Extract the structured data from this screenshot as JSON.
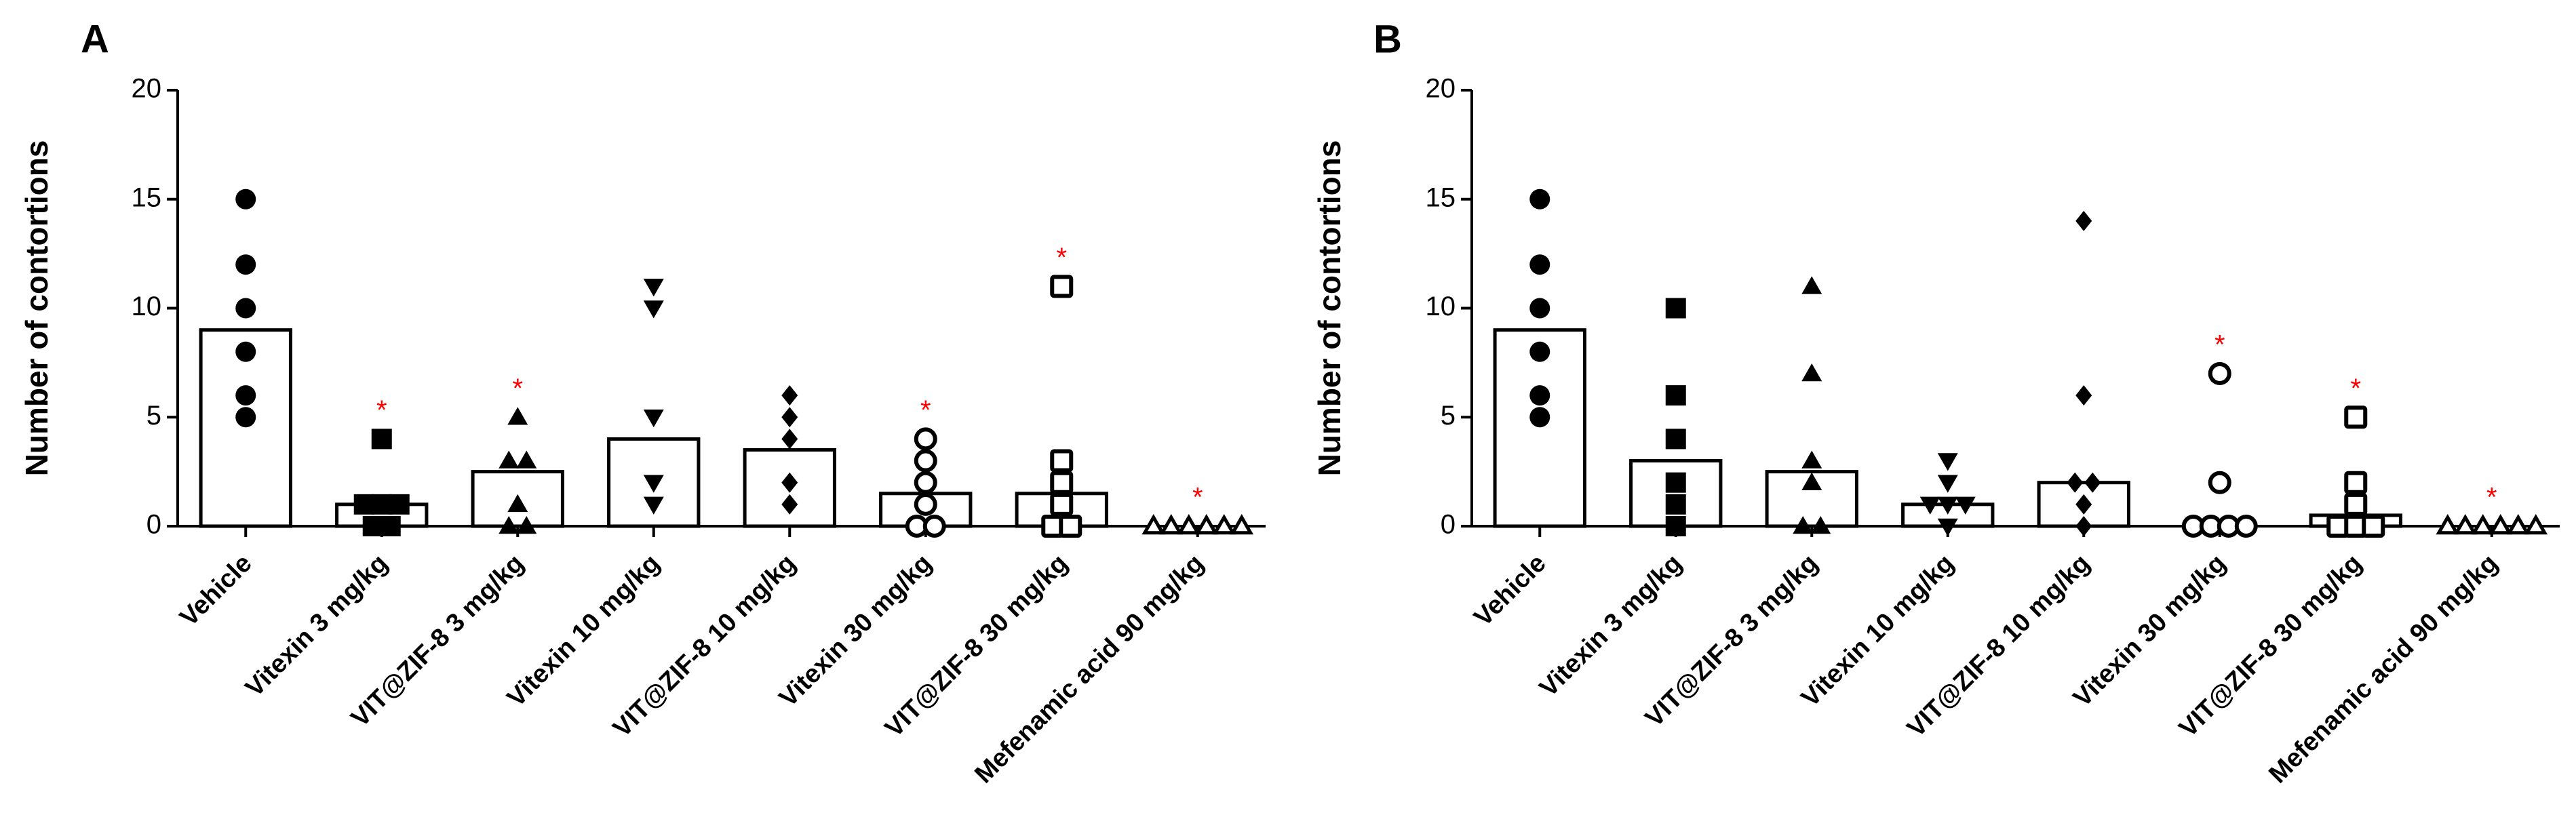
{
  "chart_data": [
    {
      "type": "bar",
      "panel_label": "A",
      "title": "",
      "xlabel": "",
      "ylabel": "Number of contortions",
      "ylim": [
        0,
        20
      ],
      "yticks": [
        0,
        5,
        10,
        15,
        20
      ],
      "significance_color": "#ff0000",
      "categories": [
        "Vehicle",
        "Vitexin 3 mg/kg",
        "VIT@ZIF-8 3 mg/kg",
        "Vitexin 10 mg/kg",
        "VIT@ZIF-8 10 mg/kg",
        "Vitexin 30 mg/kg",
        "VIT@ZIF-8 30 mg/kg",
        "Mefenamic acid 90 mg/kg"
      ],
      "markers": [
        "circle",
        "square",
        "triangle",
        "triangle-down",
        "diamond",
        "circle-open",
        "square-open",
        "triangle-open"
      ],
      "values": [
        9,
        1,
        2.5,
        4,
        3.5,
        1.5,
        1.5,
        0
      ],
      "significance": [
        "",
        "*",
        "*",
        "",
        "",
        "*",
        "*",
        "*"
      ],
      "points": [
        [
          15,
          12,
          10,
          8,
          6,
          5
        ],
        [
          4,
          1,
          1,
          1,
          0,
          0
        ],
        [
          5,
          3,
          3,
          1,
          0,
          0
        ],
        [
          11,
          10,
          5,
          2,
          1
        ],
        [
          6,
          5,
          4,
          2,
          1
        ],
        [
          4,
          3,
          2,
          1,
          0,
          0
        ],
        [
          11,
          3,
          2,
          1,
          0,
          0
        ],
        [
          0,
          0,
          0,
          0,
          0,
          0
        ]
      ]
    },
    {
      "type": "bar",
      "panel_label": "B",
      "title": "",
      "xlabel": "",
      "ylabel": "Number of contortions",
      "ylim": [
        0,
        20
      ],
      "yticks": [
        0,
        5,
        10,
        15,
        20
      ],
      "significance_color": "#ff0000",
      "categories": [
        "Vehicle",
        "Vitexin 3 mg/kg",
        "VIT@ZIF-8 3 mg/kg",
        "Vitexin 10 mg/kg",
        "VIT@ZIF-8 10 mg/kg",
        "Vitexin 30 mg/kg",
        "VIT@ZIF-8 30 mg/kg",
        "Mefenamic acid 90 mg/kg"
      ],
      "markers": [
        "circle",
        "square",
        "triangle",
        "triangle-down",
        "diamond",
        "circle-open",
        "square-open",
        "triangle-open"
      ],
      "values": [
        9,
        3,
        2.5,
        1,
        2,
        0,
        0.5,
        0
      ],
      "significance": [
        "",
        "",
        "",
        "",
        "",
        "*",
        "*",
        "*"
      ],
      "points": [
        [
          15,
          12,
          10,
          8,
          6,
          5
        ],
        [
          10,
          6,
          4,
          2,
          1,
          0
        ],
        [
          11,
          7,
          3,
          2,
          0,
          0
        ],
        [
          3,
          2,
          1,
          1,
          1,
          0
        ],
        [
          14,
          6,
          2,
          2,
          1,
          0
        ],
        [
          7,
          2,
          0,
          0,
          0,
          0
        ],
        [
          5,
          2,
          1,
          0,
          0,
          0
        ],
        [
          0,
          0,
          0,
          0,
          0,
          0
        ]
      ]
    }
  ]
}
